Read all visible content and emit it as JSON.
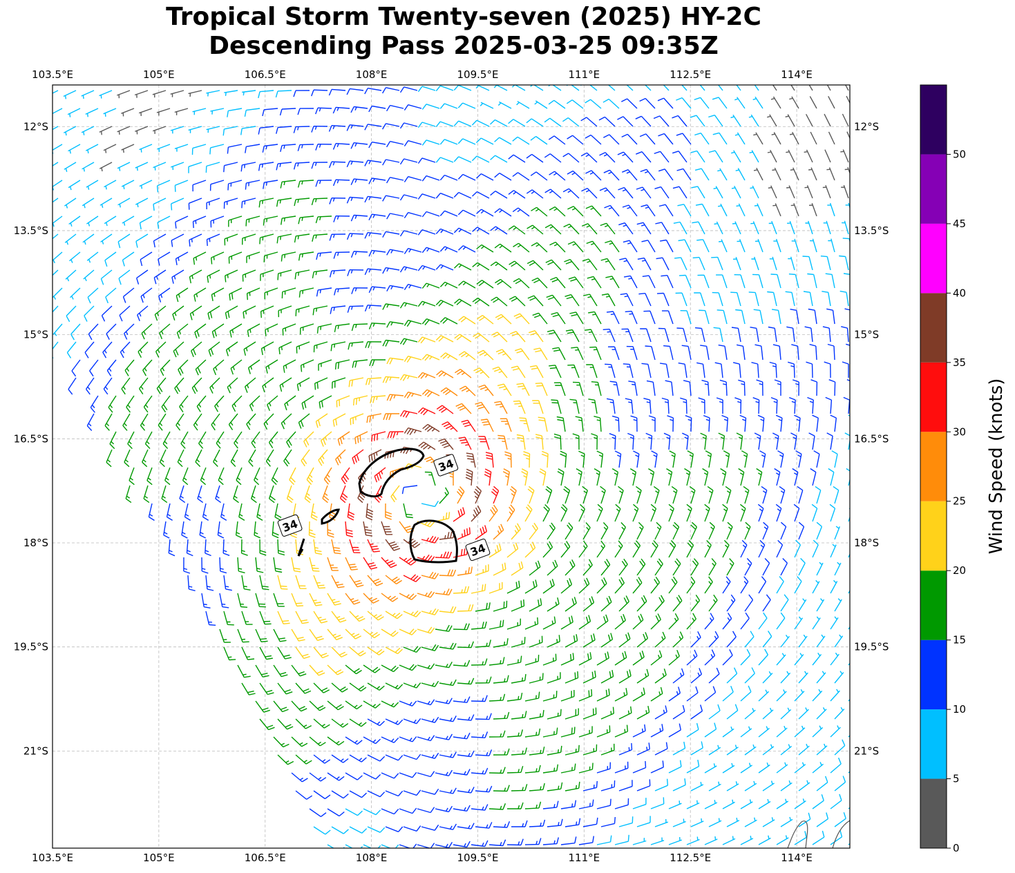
{
  "title": {
    "line1": "Tropical Storm Twenty-seven (2025) HY-2C",
    "line2": "Descending Pass 2025-03-25 09:35Z"
  },
  "map": {
    "lon_range": [
      103.5,
      114.75
    ],
    "lat_range": [
      -22.4,
      -11.4
    ],
    "lon_ticks": [
      {
        "value": 103.5,
        "label": "103.5°E"
      },
      {
        "value": 105.0,
        "label": "105°E"
      },
      {
        "value": 106.5,
        "label": "106.5°E"
      },
      {
        "value": 108.0,
        "label": "108°E"
      },
      {
        "value": 109.5,
        "label": "109.5°E"
      },
      {
        "value": 111.0,
        "label": "111°E"
      },
      {
        "value": 112.5,
        "label": "112.5°E"
      },
      {
        "value": 114.0,
        "label": "114°E"
      }
    ],
    "lat_ticks": [
      {
        "value": -12.0,
        "label": "12°S"
      },
      {
        "value": -13.5,
        "label": "13.5°S"
      },
      {
        "value": -15.0,
        "label": "15°S"
      },
      {
        "value": -16.5,
        "label": "16.5°S"
      },
      {
        "value": -18.0,
        "label": "18°S"
      },
      {
        "value": -19.5,
        "label": "19.5°S"
      },
      {
        "value": -21.0,
        "label": "21°S"
      }
    ],
    "gridlines": true,
    "storm_center": {
      "lon": 108.7,
      "lat": -17.3
    },
    "contour_label": "34",
    "contours": [
      {
        "label_at": {
          "lon": 109.05,
          "lat": -16.88
        }
      },
      {
        "label_at": {
          "lon": 106.85,
          "lat": -17.75
        }
      },
      {
        "label_at": {
          "lon": 109.5,
          "lat": -18.1
        }
      }
    ]
  },
  "colorbar": {
    "label": "Wind Speed (knots)",
    "range": [
      0,
      55
    ],
    "bins": [
      {
        "from": 0,
        "to": 5,
        "color": "#595959"
      },
      {
        "from": 5,
        "to": 10,
        "color": "#00bfff"
      },
      {
        "from": 10,
        "to": 15,
        "color": "#0033ff"
      },
      {
        "from": 15,
        "to": 20,
        "color": "#009900"
      },
      {
        "from": 20,
        "to": 25,
        "color": "#ffd21a"
      },
      {
        "from": 25,
        "to": 30,
        "color": "#ff8c0a"
      },
      {
        "from": 30,
        "to": 35,
        "color": "#ff0d0d"
      },
      {
        "from": 35,
        "to": 40,
        "color": "#7f3b27"
      },
      {
        "from": 40,
        "to": 45,
        "color": "#ff00ff"
      },
      {
        "from": 45,
        "to": 50,
        "color": "#8500b5"
      },
      {
        "from": 50,
        "to": 55,
        "color": "#2e0060"
      }
    ],
    "ticks": [
      "0",
      "5",
      "10",
      "15",
      "20",
      "25",
      "30",
      "35",
      "40",
      "45",
      "50"
    ]
  },
  "wind_field": {
    "contour_kt": 34,
    "peak_kt": 37
  }
}
